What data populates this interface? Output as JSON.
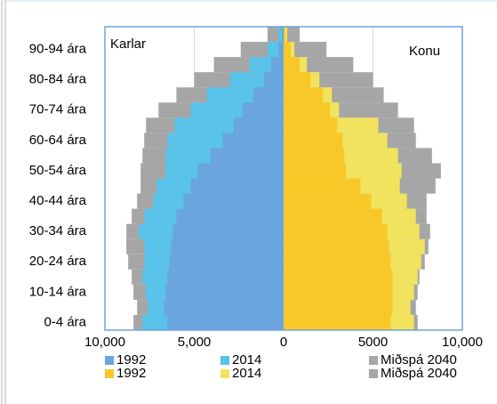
{
  "chart_data": {
    "type": "bar",
    "orientation": "horizontal",
    "categories": [
      "0-4 ára",
      null,
      "10-14 ára",
      null,
      "20-24 ára",
      null,
      "30-34 ára",
      null,
      "40-44 ára",
      null,
      "50-54 ára",
      null,
      "60-64 ára",
      null,
      "70-74 ára",
      null,
      "80-84 ára",
      null,
      "90-94 ára",
      null
    ],
    "xlim": [
      -10000,
      10000
    ],
    "xticks": [
      {
        "value": -10000,
        "label": "10,000"
      },
      {
        "value": -5000,
        "label": "5,000"
      },
      0,
      5000,
      {
        "value": 10000,
        "label": "10,000"
      }
    ],
    "grid": true,
    "annotations": [
      "Karlar",
      "Konu"
    ],
    "series": [
      {
        "name": "1992",
        "color": "#6aa5df",
        "values": [
          -6500,
          -6700,
          -6600,
          -6500,
          -6400,
          -6300,
          -6200,
          -6000,
          -5600,
          -5200,
          -4800,
          -4100,
          -3400,
          -2800,
          -2300,
          -1700,
          -1100,
          -700,
          -300,
          -100
        ]
      },
      {
        "name": "2014",
        "color": "#59c3ea",
        "values": [
          -7900,
          -7600,
          -7700,
          -7900,
          -7800,
          -7800,
          -8100,
          -7800,
          -7300,
          -7100,
          -6600,
          -6600,
          -6500,
          -6100,
          -5200,
          -4300,
          -3000,
          -1900,
          -900,
          -300
        ]
      },
      {
        "name": "Miðspá 2040",
        "color": "#a6a6a6",
        "values": [
          -8400,
          -8200,
          -8400,
          -8500,
          -8700,
          -8800,
          -8800,
          -8500,
          -8200,
          -8000,
          -8000,
          -7900,
          -7800,
          -7700,
          -7000,
          -6000,
          -5000,
          -3900,
          -2400,
          -900
        ]
      },
      {
        "name": "1992",
        "color": "#f8c829",
        "values": [
          6000,
          6100,
          6100,
          6100,
          6000,
          5900,
          5800,
          5500,
          4900,
          4300,
          3500,
          3400,
          3300,
          3000,
          2600,
          2200,
          1500,
          900,
          400,
          100
        ]
      },
      {
        "name": "2014",
        "color": "#f1e35e",
        "values": [
          7300,
          7100,
          7300,
          7500,
          7700,
          7900,
          7600,
          7400,
          6900,
          6500,
          6600,
          6400,
          5800,
          5300,
          3100,
          2700,
          2000,
          1300,
          600,
          200
        ]
      },
      {
        "name": "Miðspá 2040",
        "color": "#a6a6a6",
        "values": [
          7500,
          7400,
          7500,
          7600,
          7900,
          8100,
          8200,
          8000,
          8000,
          8500,
          8800,
          8300,
          7400,
          7300,
          6400,
          5600,
          5000,
          3900,
          2400,
          900
        ]
      }
    ]
  }
}
